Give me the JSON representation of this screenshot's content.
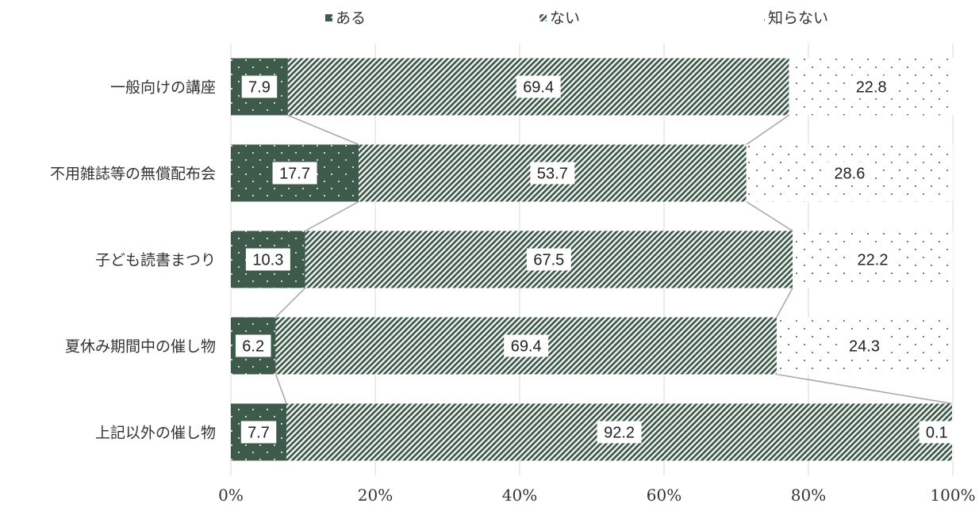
{
  "chart_data": {
    "type": "bar",
    "stacked": true,
    "orientation": "horizontal",
    "percent_scale": true,
    "categories": [
      "一般向けの講座",
      "不用雑誌等の無償配布会",
      "子ども読書まつり",
      "夏休み期間中の催し物",
      "上記以外の催し物"
    ],
    "series": [
      {
        "name": "ある",
        "values": [
          7.9,
          17.7,
          10.3,
          6.2,
          7.7
        ]
      },
      {
        "name": "ない",
        "values": [
          69.4,
          53.7,
          67.5,
          69.4,
          92.2
        ]
      },
      {
        "name": "知らない",
        "values": [
          22.8,
          28.6,
          22.2,
          24.3,
          0.1
        ]
      }
    ],
    "x_ticks": [
      "0%",
      "20%",
      "40%",
      "60%",
      "80%",
      "100%"
    ],
    "xlim": [
      0,
      100
    ],
    "grid": true,
    "legend_position": "top",
    "series_lines": true,
    "colors": {
      "primary": "#3d5a4a",
      "grid": "#d9d9d9",
      "connector": "#a6a6a6"
    }
  }
}
